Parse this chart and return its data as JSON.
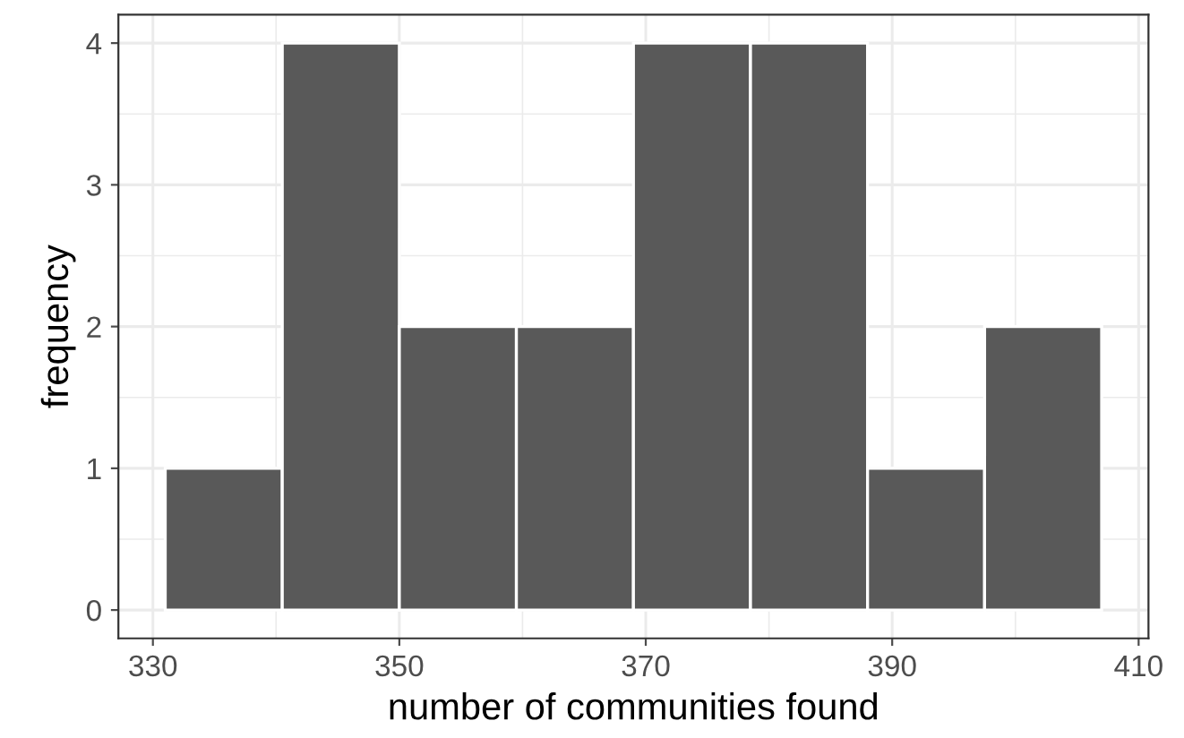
{
  "chart_data": {
    "type": "histogram",
    "xlabel": "number of communities found",
    "ylabel": "frequency",
    "bins": [
      331,
      340.5,
      350,
      359.5,
      369,
      378.5,
      388,
      397.5,
      407
    ],
    "values": [
      1,
      4,
      2,
      2,
      4,
      4,
      1,
      2
    ],
    "color": "#595959",
    "xlim": [
      327.2,
      410.8
    ],
    "xticks": [
      330,
      350,
      370,
      390,
      410
    ],
    "ylim": [
      -0.2,
      4.2
    ],
    "yticks": [
      0,
      1,
      2,
      3,
      4
    ],
    "grid": true
  }
}
